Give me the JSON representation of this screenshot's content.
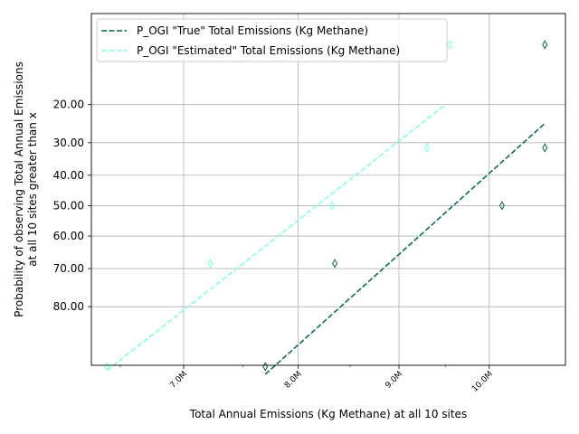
{
  "chart_data": {
    "type": "scatter",
    "title": "",
    "xlabel": "Total Annual Emissions (Kg Methane) at all 10 sites",
    "ylabel_lines": [
      "Probability of observing Total Annual Emissions",
      "at all 10 sites greater than x"
    ],
    "x_scale": "log",
    "y_scale": "normal-probability",
    "xlim": [
      6285000,
      10930000
    ],
    "ylim_z": [
      -1.6,
      1.33
    ],
    "x_ticks": [
      {
        "value": 7000000,
        "label": "7.0M"
      },
      {
        "value": 8000000,
        "label": "8.0M"
      },
      {
        "value": 9000000,
        "label": "9.0M"
      },
      {
        "value": 10000000,
        "label": "10.0M"
      }
    ],
    "x_minor_ticks": [
      6500000,
      7500000,
      8500000,
      9500000
    ],
    "y_ticks": [
      {
        "value": 20,
        "label": "20.00"
      },
      {
        "value": 30,
        "label": "30.00"
      },
      {
        "value": 40,
        "label": "40.00"
      },
      {
        "value": 50,
        "label": "50.00"
      },
      {
        "value": 60,
        "label": "60.00"
      },
      {
        "value": 70,
        "label": "70.00"
      },
      {
        "value": 80,
        "label": "80.00"
      }
    ],
    "grid": true,
    "legend_position": "upper-left",
    "series": [
      {
        "name": "P_OGI \"True\" Total Emissions (Kg Methane)",
        "color": "#006837",
        "line": {
          "x": [
            7700000,
            10680000
          ],
          "y": [
            92,
            24.5
          ]
        },
        "points": {
          "x": [
            7700000,
            8350000,
            10150000,
            10670000,
            10670000
          ],
          "y": [
            91,
            68.5,
            50,
            31.5,
            9
          ]
        }
      },
      {
        "name": "P_OGI \"Estimated\" Total Emissions (Kg Methane)",
        "color": "#7fffd4",
        "line": {
          "x": [
            6400000,
            9500000
          ],
          "y": [
            91.5,
            20
          ]
        },
        "points": {
          "x": [
            6400000,
            7220000,
            8320000,
            9300000,
            9550000
          ],
          "y": [
            91,
            68.5,
            50,
            31.5,
            9
          ]
        }
      }
    ]
  }
}
